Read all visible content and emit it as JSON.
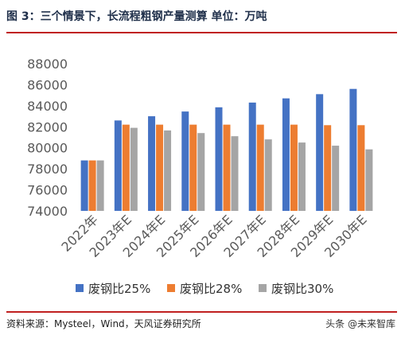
{
  "header": {
    "title": "图 3：三个情景下，长流程粗钢产量测算 单位：万吨"
  },
  "footer": {
    "source": "资料来源：Mysteel，Wind，天风证券研究所"
  },
  "watermark": {
    "text": "头条 @未来智库"
  },
  "colors": {
    "rule": "#c02020",
    "title": "#1f2f4a"
  },
  "chart_data": {
    "type": "bar",
    "categories": [
      "2022年",
      "2023年E",
      "2024年E",
      "2025年E",
      "2026年E",
      "2027年E",
      "2028年E",
      "2029年E",
      "2030年E"
    ],
    "series": [
      {
        "name": "废钢比25%",
        "color": "#4472c4",
        "values": [
          78800,
          82600,
          83000,
          83450,
          83850,
          84300,
          84700,
          85100,
          85600
        ]
      },
      {
        "name": "废钢比28%",
        "color": "#ed7d31",
        "values": [
          78800,
          82200,
          82200,
          82200,
          82200,
          82200,
          82200,
          82150,
          82150
        ]
      },
      {
        "name": "废钢比30%",
        "color": "#a5a5a5",
        "values": [
          78800,
          81900,
          81650,
          81400,
          81100,
          80800,
          80500,
          80200,
          79850
        ]
      }
    ],
    "y_ticks": [
      "74000",
      "76000",
      "78000",
      "80000",
      "82000",
      "84000",
      "86000",
      "88000"
    ],
    "ylim": [
      74000,
      88000
    ],
    "grid": false,
    "legend": "bottom"
  }
}
